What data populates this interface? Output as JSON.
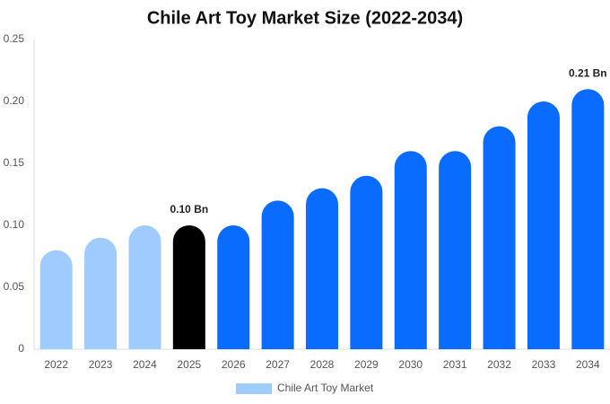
{
  "chart_data": {
    "type": "bar",
    "title": "Chile Art Toy Market Size (2022-2034)",
    "categories": [
      "2022",
      "2023",
      "2024",
      "2025",
      "2026",
      "2027",
      "2028",
      "2029",
      "2030",
      "2031",
      "2032",
      "2033",
      "2034"
    ],
    "series": [
      {
        "name": "Chile Art Toy Market",
        "color": "#a0cbff",
        "colors": [
          "#a0cbff",
          "#a0cbff",
          "#a0cbff",
          "#000000",
          "#0a6cff",
          "#0a6cff",
          "#0a6cff",
          "#0a6cff",
          "#0a6cff",
          "#0a6cff",
          "#0a6cff",
          "#0a6cff",
          "#0a6cff"
        ],
        "values": [
          0.08,
          0.09,
          0.1,
          0.1,
          0.1,
          0.12,
          0.13,
          0.14,
          0.16,
          0.16,
          0.18,
          0.2,
          0.21
        ],
        "value_labels": [
          null,
          null,
          null,
          "0.10 Bn",
          null,
          null,
          null,
          null,
          null,
          null,
          null,
          null,
          "0.21 Bn"
        ]
      }
    ],
    "ylim": [
      0,
      0.25
    ],
    "yticks": [
      0,
      0.05,
      {
        "value": 0.1,
        "label": "0.10"
      },
      0.15,
      {
        "value": 0.2,
        "label": "0.20"
      },
      0.25
    ],
    "grid": false,
    "legend": "bottom"
  }
}
